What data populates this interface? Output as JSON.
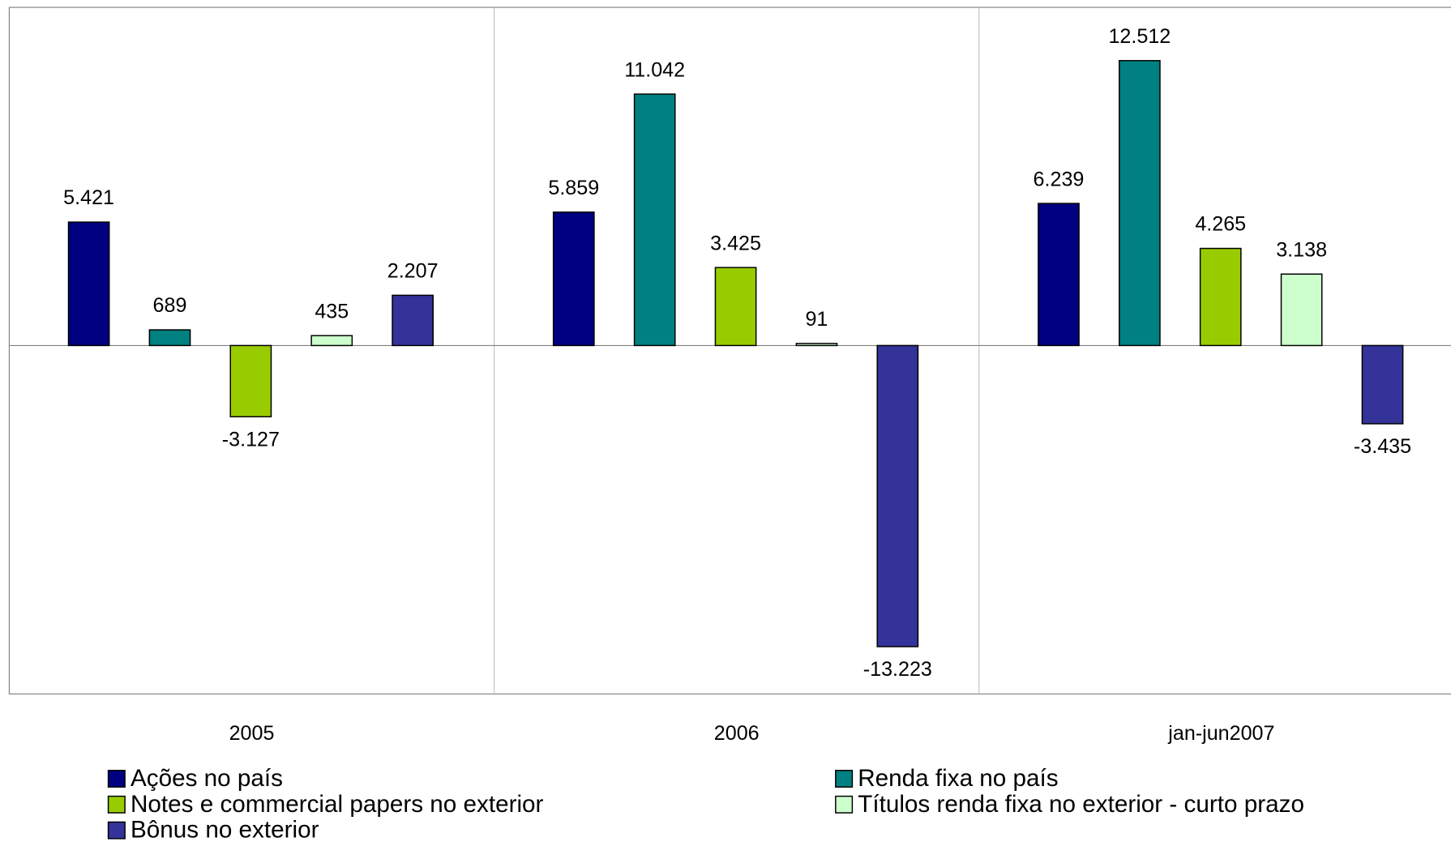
{
  "chart_data": {
    "type": "bar",
    "categories": [
      "2005",
      "2006",
      "jan-jun2007"
    ],
    "series": [
      {
        "name": "Ações no país",
        "color": "#000080",
        "values": [
          5421,
          5859,
          6239
        ],
        "value_labels": [
          "5.421",
          "5.859",
          "6.239"
        ]
      },
      {
        "name": "Renda fixa no país",
        "color": "#008080",
        "values": [
          689,
          11042,
          12512
        ],
        "value_labels": [
          "689",
          "11.042",
          "12.512"
        ]
      },
      {
        "name": "Notes e commercial papers no exterior",
        "color": "#99cc00",
        "values": [
          -3127,
          3425,
          4265
        ],
        "value_labels": [
          "-3.127",
          "3.425",
          "4.265"
        ]
      },
      {
        "name": "Títulos renda fixa no exterior - curto prazo",
        "color": "#ccffcc",
        "values": [
          435,
          91,
          3138
        ],
        "value_labels": [
          "435",
          "91",
          "3.138"
        ]
      },
      {
        "name": "Bônus no exterior",
        "color": "#333399",
        "values": [
          2207,
          -13223,
          -3435
        ],
        "value_labels": [
          "2.207",
          "-13.223",
          "-3.435"
        ]
      }
    ],
    "ylim": [
      -15300,
      14850
    ]
  }
}
